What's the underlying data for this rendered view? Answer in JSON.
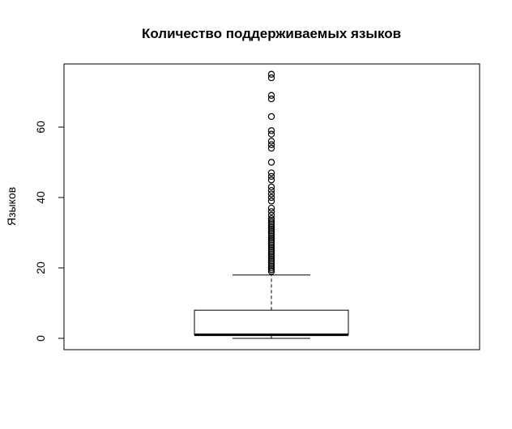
{
  "chart_data": {
    "type": "box",
    "title": "Количество поддерживаемых языков",
    "xlabel": "",
    "ylabel": "Языков",
    "ylim": [
      -3,
      78
    ],
    "yticks": [
      0,
      20,
      40,
      60
    ],
    "ytick_labels": [
      "0",
      "20",
      "40",
      "60"
    ],
    "grid": false,
    "box": {
      "min": 0,
      "q1": 1,
      "median": 1,
      "q3": 8,
      "whisker_high": 18,
      "outliers": [
        19,
        19.5,
        20,
        20.5,
        21,
        21.5,
        22,
        22.5,
        23,
        23.5,
        24,
        24.5,
        25,
        25.5,
        26,
        26.5,
        27,
        27.5,
        28,
        28.5,
        29,
        29.5,
        30,
        30.5,
        31,
        31.5,
        32,
        32.5,
        33,
        33.5,
        34,
        35,
        36,
        37,
        39,
        40,
        41,
        42,
        43,
        45,
        46,
        47,
        50,
        54,
        55,
        56,
        58,
        59,
        63,
        68,
        69,
        74,
        75
      ]
    }
  }
}
